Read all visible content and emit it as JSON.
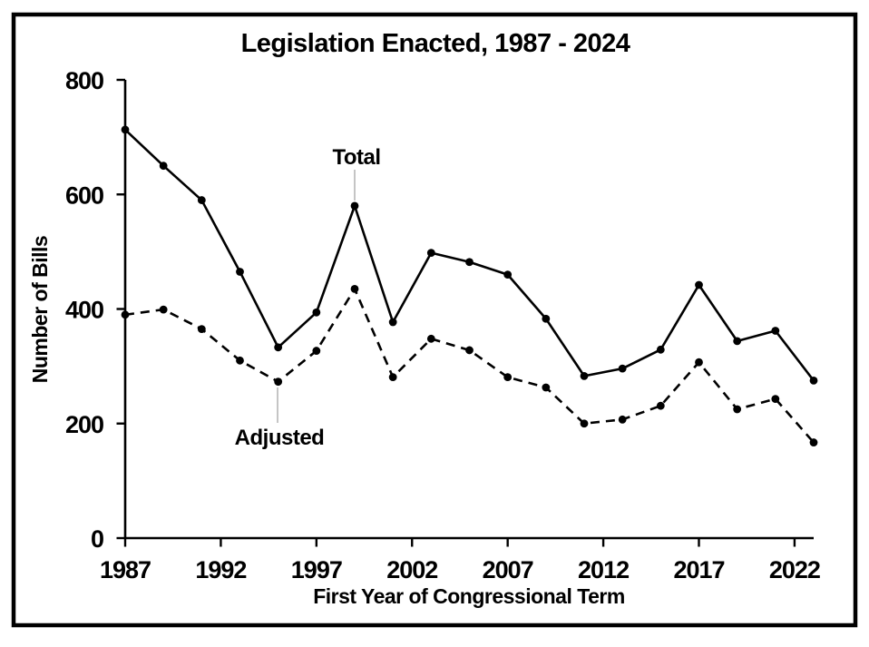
{
  "chart_data": {
    "type": "line",
    "title": "Legislation Enacted, 1987 - 2024",
    "xlabel": "First Year of Congressional Term",
    "ylabel": "Number of Bills",
    "x": [
      1987,
      1989,
      1991,
      1993,
      1995,
      1997,
      1999,
      2001,
      2003,
      2005,
      2007,
      2009,
      2011,
      2013,
      2015,
      2017,
      2019,
      2021,
      2023
    ],
    "series": [
      {
        "name": "Total",
        "line_style": "solid",
        "marker": "circle",
        "values": [
          713,
          650,
          590,
          465,
          333,
          394,
          580,
          377,
          498,
          482,
          460,
          383,
          283,
          296,
          329,
          442,
          344,
          362,
          275
        ]
      },
      {
        "name": "Adjusted",
        "line_style": "dashed",
        "marker": "circle",
        "values": [
          390,
          399,
          365,
          310,
          273,
          327,
          435,
          281,
          348,
          328,
          281,
          263,
          200,
          207,
          231,
          307,
          225,
          243,
          167
        ]
      }
    ],
    "annotations": [
      {
        "text": "Total",
        "target_year": 1999,
        "target_series": "Total"
      },
      {
        "text": "Adjusted",
        "target_year": 1995,
        "target_series": "Adjusted"
      }
    ],
    "xticks": [
      1987,
      1992,
      1997,
      2002,
      2007,
      2012,
      2017,
      2022
    ],
    "yticks": [
      0,
      200,
      400,
      600,
      800
    ],
    "xlim": [
      1987,
      2023
    ],
    "ylim": [
      0,
      800
    ],
    "grid": false,
    "legend_position": "inline-annotations",
    "colors": {
      "line": "#000000",
      "text": "#000000",
      "background": "#ffffff",
      "frame": "#000000",
      "leader_line": "#a6a6a6"
    }
  }
}
